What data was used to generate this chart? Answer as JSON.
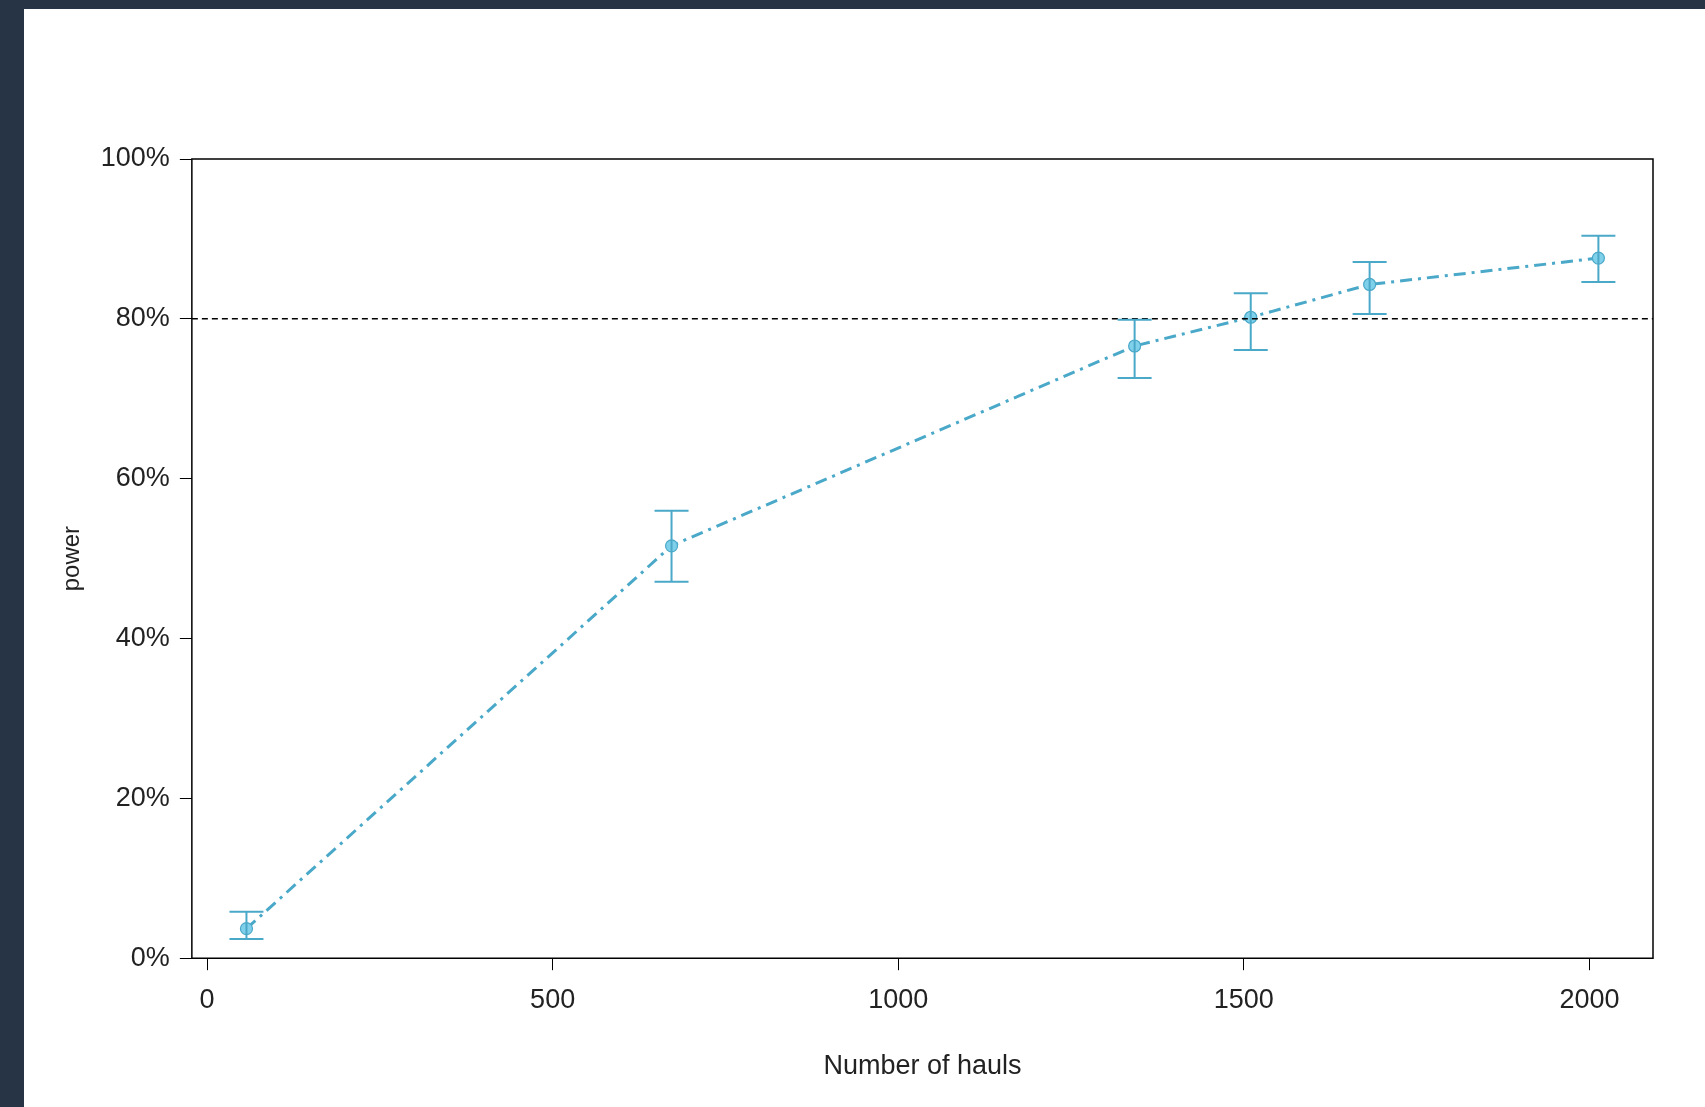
{
  "chart_data": {
    "type": "line",
    "xlabel": "Number of hauls",
    "ylabel": "power",
    "x": [
      57,
      672,
      1342,
      1510,
      1682,
      2013
    ],
    "series": [
      {
        "color": "#4aa8c8",
        "values": [
          3.7,
          51.6,
          76.6,
          80.2,
          84.3,
          87.6
        ],
        "errors": [
          [
            2.4,
            5.8
          ],
          [
            47.1,
            56.0
          ],
          [
            72.6,
            79.9
          ],
          [
            76.1,
            83.2
          ],
          [
            80.6,
            87.1
          ],
          [
            84.6,
            90.4
          ]
        ]
      }
    ],
    "xlim": [
      -22,
      2092
    ],
    "xticks": [
      0,
      500,
      1000,
      1500,
      2000
    ],
    "ylim": [
      0,
      100
    ],
    "yticks": [
      {
        "value": 0,
        "label": "0%"
      },
      {
        "value": 20,
        "label": "20%"
      },
      {
        "value": 40,
        "label": "40%"
      },
      {
        "value": 60,
        "label": "60%"
      },
      {
        "value": 80,
        "label": "80%"
      },
      {
        "value": 100,
        "label": "100%"
      }
    ],
    "ref_lines": [
      {
        "axis": "y",
        "value": 80,
        "color": "#000000",
        "line_style": "dashed"
      }
    ],
    "grid": false,
    "legend": false,
    "marker": "circle",
    "line_style": "dashed"
  }
}
